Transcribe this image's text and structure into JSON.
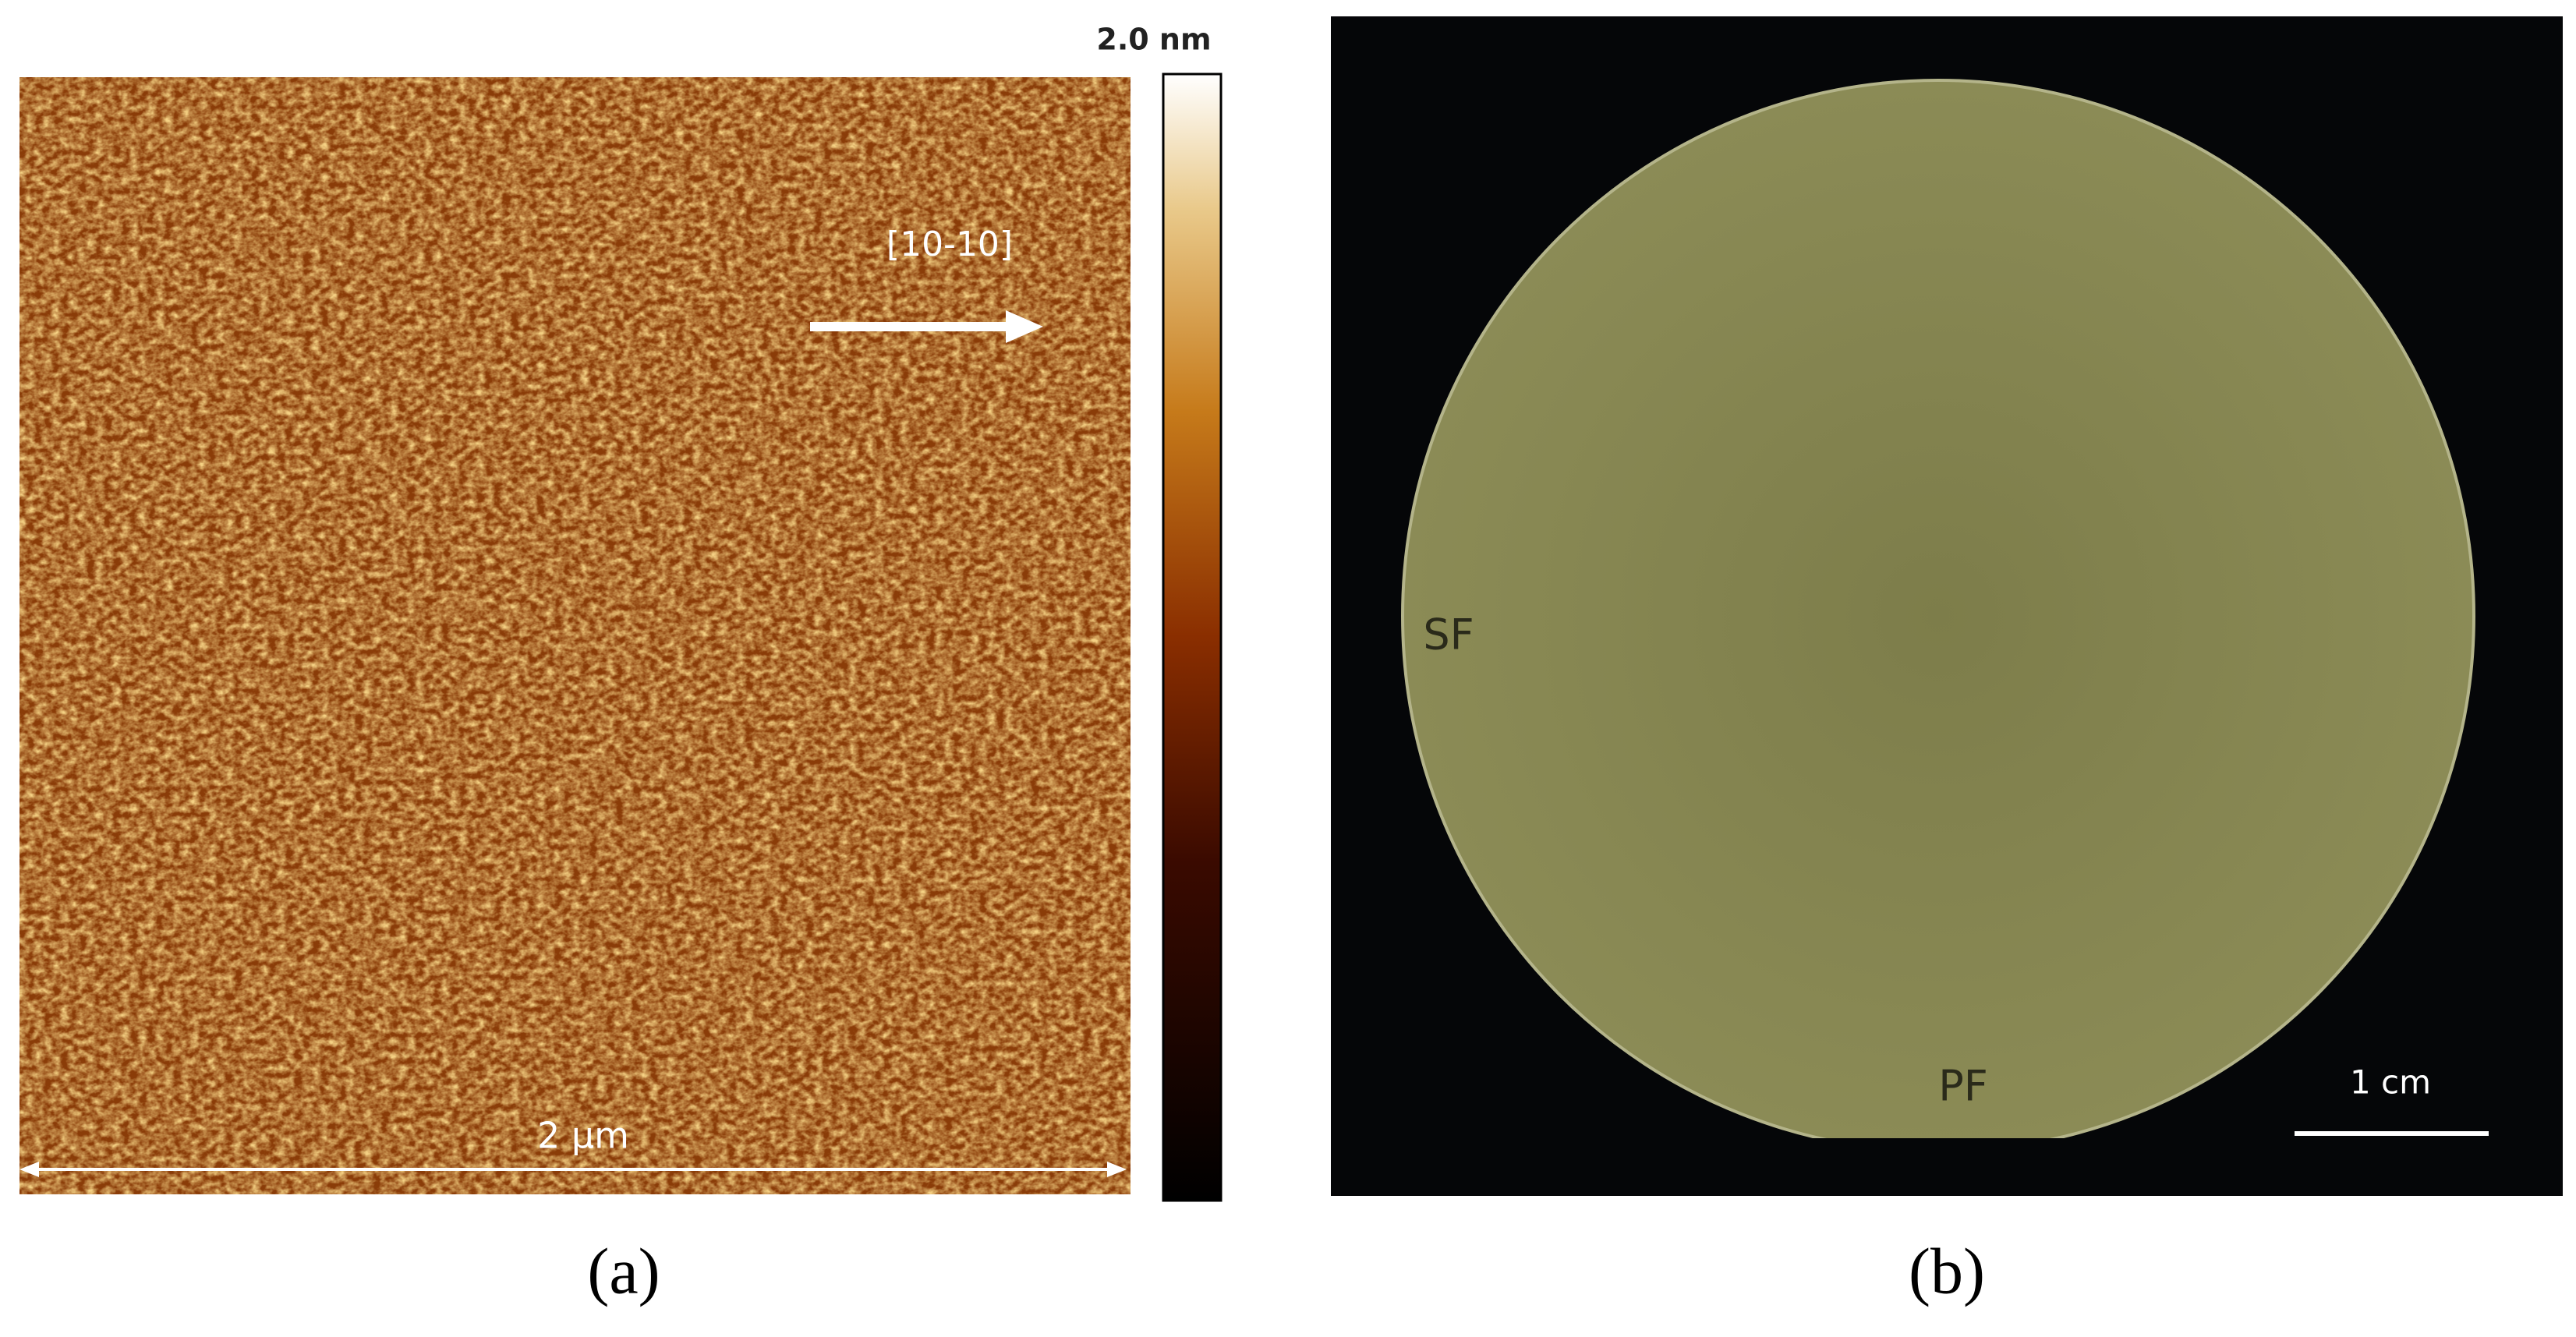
{
  "panel_a": {
    "colorbar_label": "2.0 nm",
    "direction_label": "[10-10]",
    "scale_label": "2 µm",
    "caption": "(a)"
  },
  "panel_b": {
    "secondary_flat_label": "SF",
    "primary_flat_label": "PF",
    "scale_label": "1 cm",
    "caption": "(b)"
  }
}
